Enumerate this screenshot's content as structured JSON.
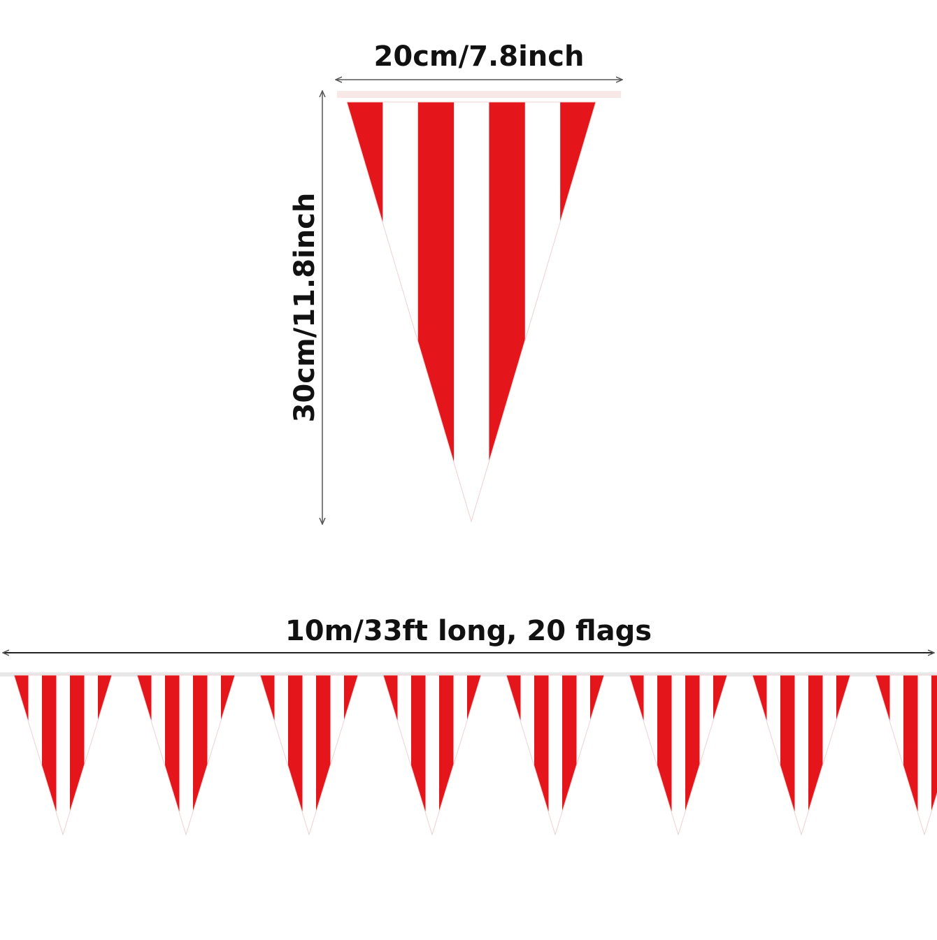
{
  "labels": {
    "width": "20cm/7.8inch",
    "height": "30cm/11.8inch",
    "length": "10m/33ft long, 20 flags"
  },
  "colors": {
    "stripe_red": "#e4161c",
    "stripe_white": "#ffffff",
    "string": "#e8e8e8",
    "arrow": "#555555"
  },
  "bunting": {
    "flags_shown": 8,
    "stripes_per_flag": 7
  }
}
